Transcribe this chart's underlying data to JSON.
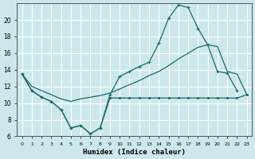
{
  "xlabel": "Humidex (Indice chaleur)",
  "bg_color": "#cce8ec",
  "grid_color": "#ffffff",
  "line_color": "#1a6b6b",
  "xlim": [
    -0.5,
    23.5
  ],
  "ylim": [
    6,
    22
  ],
  "x_ticks": [
    0,
    1,
    2,
    3,
    4,
    5,
    6,
    7,
    8,
    9,
    10,
    11,
    12,
    13,
    14,
    15,
    16,
    17,
    18,
    19,
    20,
    21,
    22,
    23
  ],
  "y_ticks": [
    6,
    8,
    10,
    12,
    14,
    16,
    18,
    20
  ],
  "line1_x": [
    0,
    1,
    2,
    3,
    4,
    5,
    6,
    7,
    8,
    9,
    10,
    11,
    12,
    13,
    14,
    15,
    16,
    17,
    18,
    19,
    20,
    21,
    22,
    23
  ],
  "line1_y": [
    13.5,
    11.5,
    10.7,
    10.2,
    9.2,
    7.0,
    7.3,
    6.3,
    7.0,
    10.6,
    10.6,
    10.6,
    10.6,
    10.6,
    10.6,
    10.6,
    10.6,
    10.6,
    10.6,
    10.6,
    10.6,
    10.6,
    10.6,
    11.0
  ],
  "line2_x": [
    0,
    1,
    2,
    3,
    4,
    5,
    6,
    7,
    8,
    9,
    10,
    11,
    12,
    13,
    14,
    15,
    16,
    17,
    18,
    19,
    20,
    21,
    22
  ],
  "line2_y": [
    13.5,
    11.5,
    10.7,
    10.2,
    9.2,
    7.0,
    7.3,
    6.3,
    7.0,
    11.0,
    13.2,
    13.8,
    14.4,
    14.9,
    17.2,
    20.2,
    21.8,
    21.5,
    19.0,
    17.0,
    13.8,
    13.6,
    11.5
  ],
  "line3_x": [
    0,
    1,
    2,
    3,
    4,
    5,
    6,
    7,
    8,
    9,
    10,
    11,
    12,
    13,
    14,
    15,
    16,
    17,
    18,
    19,
    20,
    21,
    22,
    23
  ],
  "line3_y": [
    13.5,
    12.0,
    11.5,
    11.0,
    10.5,
    10.2,
    10.5,
    10.7,
    10.9,
    11.2,
    11.7,
    12.2,
    12.7,
    13.3,
    13.8,
    14.5,
    15.3,
    16.0,
    16.7,
    17.0,
    16.8,
    13.8,
    13.5,
    11.0
  ]
}
